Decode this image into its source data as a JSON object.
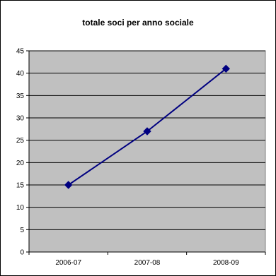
{
  "chart_data": {
    "type": "line",
    "title": "totale soci per anno sociale",
    "categories": [
      "2006-07",
      "2007-08",
      "2008-09"
    ],
    "series": [
      {
        "values": [
          15,
          27,
          41
        ]
      }
    ],
    "ylim": [
      0,
      45
    ],
    "yticks": [
      0,
      5,
      10,
      15,
      20,
      25,
      30,
      35,
      40,
      45
    ],
    "grid": true,
    "legend": "none",
    "colors": {
      "plot_background": "#c0c0c0",
      "line": "#000080",
      "marker": "#000080",
      "gridline": "#000000"
    }
  }
}
